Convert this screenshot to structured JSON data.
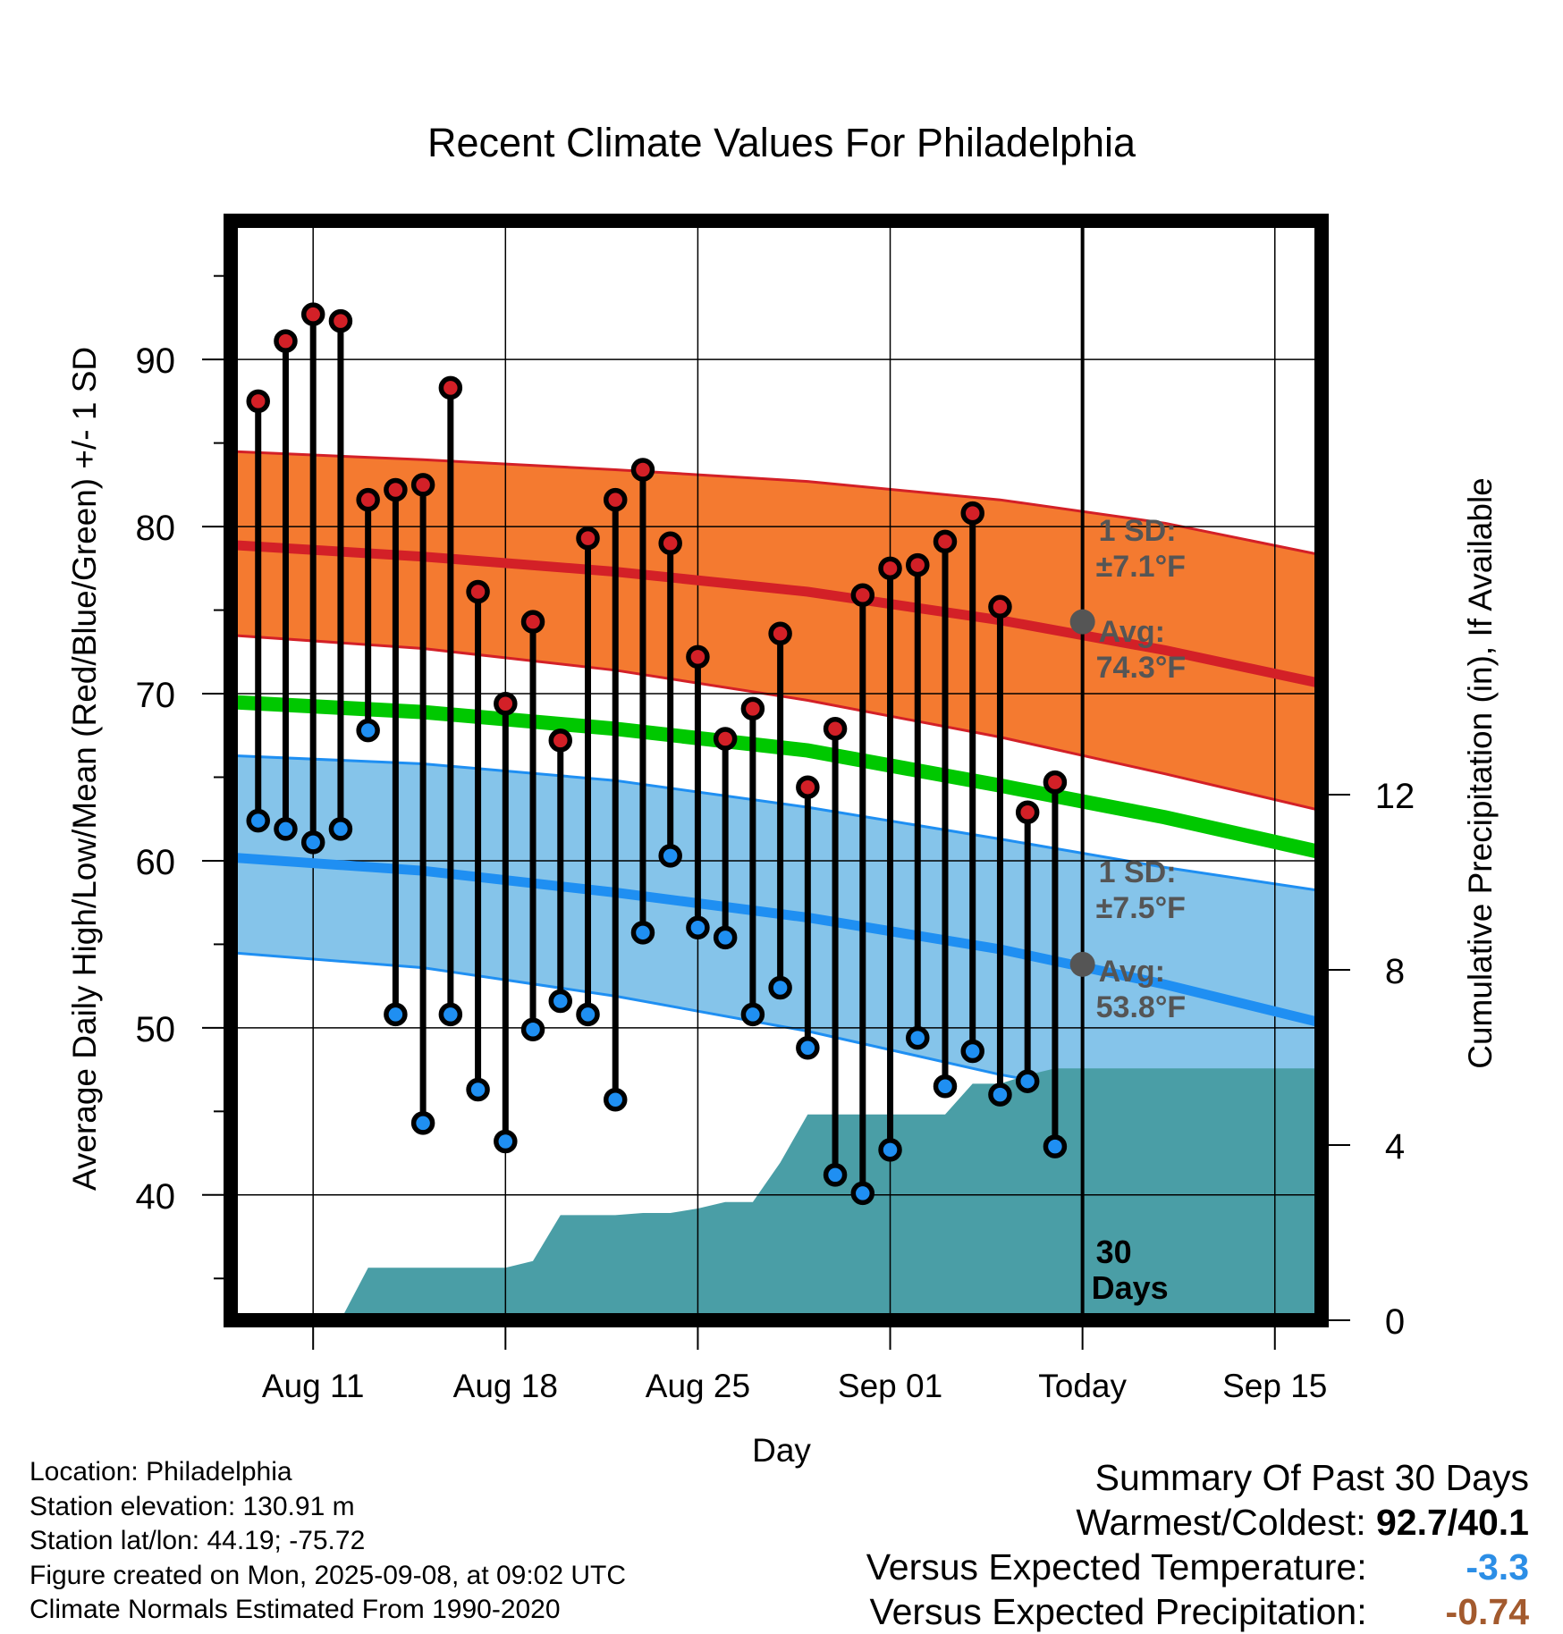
{
  "chart_data": {
    "type": "line",
    "title": "Recent Climate Values For Philadelphia",
    "xlabel": "Day",
    "ylabel_left": "Average Daily High/Low/Mean (Red/Blue/Green) +/- 1 SD",
    "ylabel_right": "Cumulative Precipitation (in), If Available",
    "x_ticks": [
      "Aug 11",
      "Aug 18",
      "Aug 25",
      "Sep 01",
      "Today",
      "Sep 15"
    ],
    "x_tick_days": [
      11,
      18,
      25,
      32,
      39,
      46
    ],
    "xlim": [
      8,
      47.7
    ],
    "ylim_left": [
      32.5,
      98.3
    ],
    "ylim_right": [
      0,
      30
    ],
    "y_ticks_left": [
      40,
      50,
      60,
      70,
      80,
      90
    ],
    "y_ticks_right": [
      0,
      4,
      8,
      12
    ],
    "grid": true,
    "days": [
      9,
      10,
      11,
      12,
      13,
      14,
      15,
      16,
      17,
      18,
      19,
      20,
      21,
      22,
      23,
      24,
      25,
      26,
      27,
      28,
      29,
      30,
      31,
      32,
      33,
      34,
      35,
      36,
      37,
      38
    ],
    "highs": [
      87.5,
      91.1,
      92.7,
      92.3,
      81.6,
      82.2,
      82.5,
      88.3,
      76.1,
      69.4,
      74.3,
      67.2,
      79.3,
      81.6,
      83.4,
      79.0,
      72.2,
      67.3,
      69.1,
      73.6,
      64.4,
      67.9,
      75.9,
      77.5,
      77.7,
      79.1,
      80.8,
      75.2,
      62.9,
      64.7
    ],
    "lows": [
      62.4,
      61.9,
      61.1,
      61.9,
      67.8,
      50.8,
      44.3,
      50.8,
      46.3,
      43.2,
      49.9,
      51.6,
      50.8,
      45.7,
      55.7,
      60.3,
      56.0,
      55.4,
      50.8,
      52.4,
      48.8,
      41.2,
      40.1,
      42.7,
      49.4,
      46.5,
      48.6,
      46.0,
      46.8,
      42.9
    ],
    "normal_high": {
      "label": "Avg:",
      "value": "74.3°F",
      "sd_label": "1 SD:",
      "sd_value": "±7.1°F",
      "values": [
        78.9,
        78.2,
        77.3,
        76.1,
        74.4,
        72.6,
        70.6
      ],
      "band_top": [
        84.5,
        84.0,
        83.4,
        82.7,
        81.6,
        80.2,
        78.3
      ],
      "band_bottom": [
        73.5,
        72.7,
        71.4,
        69.6,
        67.4,
        65.2,
        63.0
      ]
    },
    "normal_low": {
      "label": "Avg:",
      "value": "53.8°F",
      "sd_label": "1 SD:",
      "sd_value": "±7.5°F",
      "values": [
        60.2,
        59.4,
        58.1,
        56.6,
        54.7,
        52.6,
        50.3
      ],
      "band_top": [
        66.3,
        65.8,
        64.8,
        63.2,
        61.3,
        59.6,
        58.2
      ],
      "band_bottom": [
        54.5,
        53.6,
        51.9,
        49.8,
        47.2,
        45.4,
        43.0
      ]
    },
    "normal_mean": {
      "values": [
        69.5,
        68.9,
        67.9,
        66.6,
        64.5,
        62.6,
        60.5
      ]
    },
    "normal_days": [
      8,
      15,
      22,
      29,
      36,
      42,
      47.7
    ],
    "precip": {
      "days": [
        8,
        9,
        10,
        11,
        12,
        13,
        14,
        15,
        16,
        17,
        18,
        19,
        20,
        21,
        22,
        23,
        24,
        25,
        26,
        27,
        28,
        29,
        30,
        31,
        32,
        33,
        34,
        35,
        36,
        37,
        38,
        39,
        47.7
      ],
      "values": [
        0,
        0,
        0,
        0,
        0,
        1.2,
        1.2,
        1.2,
        1.2,
        1.2,
        1.2,
        1.35,
        2.4,
        2.4,
        2.4,
        2.45,
        2.45,
        2.55,
        2.7,
        2.7,
        3.6,
        4.7,
        4.7,
        4.7,
        4.7,
        4.7,
        4.7,
        5.4,
        5.4,
        5.6,
        5.75,
        5.75,
        5.75
      ],
      "label_count": "30",
      "label_unit": "Days"
    },
    "today_day": 39,
    "colors": {
      "high": "#d32027",
      "high_band": "#f47a30",
      "low": "#1f8ff2",
      "low_band": "#85c4ea",
      "mean": "#00c800",
      "precip": "#4a9ea6",
      "annot": "#555555"
    }
  },
  "info": {
    "location": "Location: Philadelphia",
    "elevation": "Station elevation: 130.91 m",
    "latlon": "Station lat/lon: 44.19; -75.72",
    "created": "Figure created on Mon, 2025-09-08, at 09:02 UTC",
    "normals": "Climate Normals Estimated From 1990-2020"
  },
  "summary": {
    "heading": "Summary Of Past 30 Days",
    "warm_label": "Warmest/Coldest:",
    "warm_value": "92.7/40.1",
    "temp_label": "Versus Expected Temperature:",
    "temp_value": "-3.3",
    "temp_color": "#2c8ee6",
    "precip_label": "Versus Expected Precipitation:",
    "precip_value": "-0.74",
    "precip_color": "#a35a2e"
  }
}
